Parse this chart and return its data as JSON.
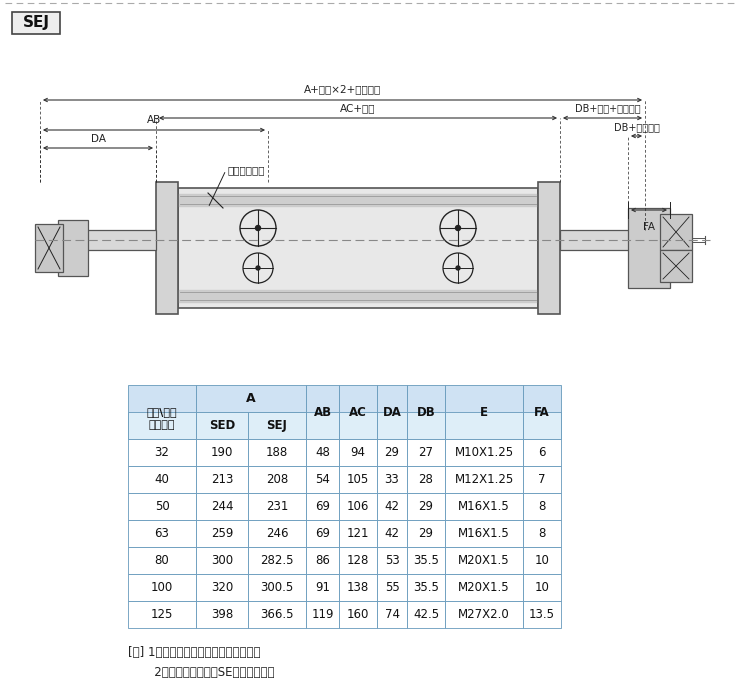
{
  "title": "SEJ",
  "table_data": [
    [
      "32",
      "190",
      "188",
      "48",
      "94",
      "29",
      "27",
      "M10X1.25",
      "6"
    ],
    [
      "40",
      "213",
      "208",
      "54",
      "105",
      "33",
      "28",
      "M12X1.25",
      "7"
    ],
    [
      "50",
      "244",
      "231",
      "69",
      "106",
      "42",
      "29",
      "M16X1.5",
      "8"
    ],
    [
      "63",
      "259",
      "246",
      "69",
      "121",
      "42",
      "29",
      "M16X1.5",
      "8"
    ],
    [
      "80",
      "300",
      "282.5",
      "86",
      "128",
      "53",
      "35.5",
      "M20X1.5",
      "10"
    ],
    [
      "100",
      "320",
      "300.5",
      "91",
      "138",
      "55",
      "35.5",
      "M20X1.5",
      "10"
    ],
    [
      "125",
      "398",
      "366.5",
      "119",
      "160",
      "74",
      "42.5",
      "M27X2.0",
      "13.5"
    ]
  ],
  "note_line1": "[注] 1、附磁型与不附磁型之尺寸相同。",
  "note_line2": "       2、未标注之尺寸与SE标准型相同。",
  "dim_top": "A+行程×2+调整行程",
  "dim_ac": "AC+行程",
  "dim_ab": "AB",
  "dim_da": "DA",
  "dim_buffer": "缓冲调节螺丝",
  "dim_db_full": "DB+行程+调整行程",
  "dim_db": "DB+调整行程",
  "dim_fa": "FA",
  "header_bg": "#cfe2f3",
  "subheader_bg": "#deeef8",
  "data_bg": "#ffffff",
  "border_color": "#6699bb",
  "bg_color": "#ffffff"
}
